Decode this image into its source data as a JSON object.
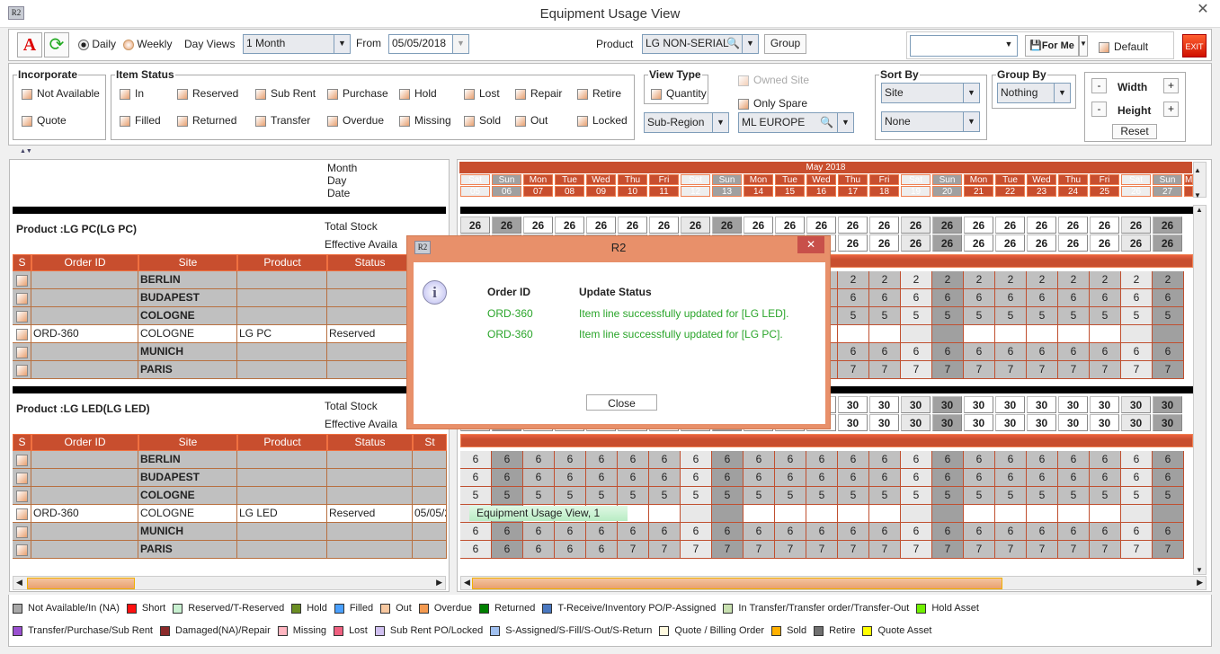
{
  "window": {
    "title": "Equipment Usage View",
    "app_logo": "R2",
    "close": "✕"
  },
  "toolbar": {
    "daily": "Daily",
    "weekly": "Weekly",
    "day_views_label": "Day Views",
    "day_views_value": "1 Month",
    "from_label": "From",
    "from_value": "05/05/2018",
    "product_label": "Product",
    "product_value": "LG NON-SERIAL",
    "group_button": "Group",
    "preset_value": "",
    "for_me": "For Me",
    "default": "Default",
    "exit": "EXIT",
    "view_mode": "Daily"
  },
  "filters": {
    "incorporate": {
      "title": "Incorporate",
      "items": [
        "Not Available",
        "Quote"
      ]
    },
    "item_status": {
      "title": "Item Status",
      "row1": [
        "In",
        "Reserved",
        "Sub Rent",
        "Purchase",
        "Hold",
        "Lost",
        "Repair",
        "Retire"
      ],
      "row2": [
        "Filled",
        "Returned",
        "Transfer",
        "Overdue",
        "Missing",
        "Sold",
        "Out",
        "Locked"
      ]
    },
    "view_type": {
      "title": "View Type",
      "quantity": "Quantity"
    },
    "owned_site": "Owned Site",
    "only_spare": "Only Spare",
    "region": "Sub-Region",
    "site": "ML EUROPE",
    "sort_by": {
      "title": "Sort By",
      "first": "Site",
      "second": "None"
    },
    "group_by": {
      "title": "Group By",
      "value": "Nothing"
    },
    "size": {
      "width": "Width",
      "height": "Height",
      "minus": "-",
      "plus": "+",
      "reset": "Reset"
    }
  },
  "left": {
    "month": "Month",
    "day": "Day",
    "date": "Date",
    "total_stock": "Total Stock",
    "effective": "Effective Availa",
    "columns": [
      "S",
      "Order ID",
      "Site",
      "Product",
      "Status",
      "St"
    ],
    "products": [
      {
        "title": "Product :LG PC(LG PC)",
        "rows": [
          {
            "order": "",
            "site": "BERLIN",
            "product": "",
            "status": "",
            "start": ""
          },
          {
            "order": "",
            "site": "BUDAPEST",
            "product": "",
            "status": "",
            "start": ""
          },
          {
            "order": "",
            "site": "COLOGNE",
            "product": "",
            "status": "",
            "start": ""
          },
          {
            "order": "ORD-360",
            "site": "COLOGNE",
            "product": "LG PC",
            "status": "Reserved",
            "start": ""
          },
          {
            "order": "",
            "site": "MUNICH",
            "product": "",
            "status": "",
            "start": ""
          },
          {
            "order": "",
            "site": "PARIS",
            "product": "",
            "status": "",
            "start": ""
          }
        ]
      },
      {
        "title": "Product :LG LED(LG LED)",
        "rows": [
          {
            "order": "",
            "site": "BERLIN",
            "product": "",
            "status": "",
            "start": ""
          },
          {
            "order": "",
            "site": "BUDAPEST",
            "product": "",
            "status": "",
            "start": ""
          },
          {
            "order": "",
            "site": "COLOGNE",
            "product": "",
            "status": "",
            "start": ""
          },
          {
            "order": "ORD-360",
            "site": "COLOGNE",
            "product": "LG LED",
            "status": "Reserved",
            "start": "05/05/2"
          },
          {
            "order": "",
            "site": "MUNICH",
            "product": "",
            "status": "",
            "start": ""
          },
          {
            "order": "",
            "site": "PARIS",
            "product": "",
            "status": "",
            "start": ""
          }
        ]
      }
    ]
  },
  "calendar": {
    "month": "May 2018",
    "days": [
      "Sat",
      "Sun",
      "Mon",
      "Tue",
      "Wed",
      "Thu",
      "Fri",
      "Sat",
      "Sun",
      "Mon",
      "Tue",
      "Wed",
      "Thu",
      "Fri",
      "Sat",
      "Sun",
      "Mon",
      "Tue",
      "Wed",
      "Thu",
      "Fri",
      "Sat",
      "Sun",
      "M"
    ],
    "dates": [
      "05",
      "06",
      "07",
      "08",
      "09",
      "10",
      "11",
      "12",
      "13",
      "14",
      "15",
      "16",
      "17",
      "18",
      "19",
      "20",
      "21",
      "22",
      "23",
      "24",
      "25",
      "26",
      "27",
      ""
    ]
  },
  "grid": [
    {
      "total": 26,
      "effective": 26,
      "sites": [
        [
          2
        ],
        [
          6
        ],
        [
          5
        ],
        [
          null
        ],
        [
          6
        ],
        [
          6,
          6,
          6,
          6,
          6,
          7
        ]
      ]
    },
    {
      "total": 30,
      "effective": 30,
      "sites": [
        [
          6
        ],
        [
          6
        ],
        [
          5
        ],
        [
          null
        ],
        [
          6
        ],
        [
          6,
          6,
          6,
          6,
          6,
          7
        ]
      ]
    }
  ],
  "tooltip": "Equipment Usage View, 1",
  "dialog": {
    "title": "R2",
    "icon": "info-icon",
    "col1": "Order ID",
    "col2": "Update Status",
    "rows": [
      {
        "id": "ORD-360",
        "status": "Item line successfully updated for [LG LED]."
      },
      {
        "id": "ORD-360",
        "status": "Item line successfully updated for [LG PC]."
      }
    ],
    "close": "Close",
    "success_color": "#2aa52a"
  },
  "legend": {
    "row1": [
      [
        "Not Available/In (NA)",
        "#a8a8a8"
      ],
      [
        "Short",
        "#ff1010"
      ],
      [
        "Reserved/T-Reserved",
        "#c8f0d0"
      ],
      [
        "Hold",
        "#6b8e23"
      ],
      [
        "Filled",
        "#4aa0ff"
      ],
      [
        "Out",
        "#f8c8a0"
      ],
      [
        "Overdue",
        "#f49a50"
      ],
      [
        "Returned",
        "#008000"
      ],
      [
        "T-Receive/Inventory PO/P-Assigned",
        "#4a78c0"
      ],
      [
        "In Transfer/Transfer order/Transfer-Out",
        "#c8e0b0"
      ],
      [
        "Hold Asset",
        "#70f000"
      ]
    ],
    "row2": [
      [
        "Transfer/Purchase/Sub Rent",
        "#9a50d0"
      ],
      [
        "Damaged(NA)/Repair",
        "#8b2a2a"
      ],
      [
        "Missing",
        "#ffb6c1"
      ],
      [
        "Lost",
        "#f06080"
      ],
      [
        "Sub Rent PO/Locked",
        "#d0c0f0"
      ],
      [
        "S-Assigned/S-Fill/S-Out/S-Return",
        "#a0c0f0"
      ],
      [
        "Quote / Billing Order",
        "#fffae0"
      ],
      [
        "Sold",
        "#ffb000"
      ],
      [
        "Retire",
        "#707070"
      ],
      [
        "Quote Asset",
        "#ffff00"
      ]
    ]
  },
  "colors": {
    "accent": "#c84e2e",
    "weekend_sat": "#e8e8e8",
    "weekend_sun": "#a0a0a0",
    "site_row": "#c0c0c0"
  }
}
